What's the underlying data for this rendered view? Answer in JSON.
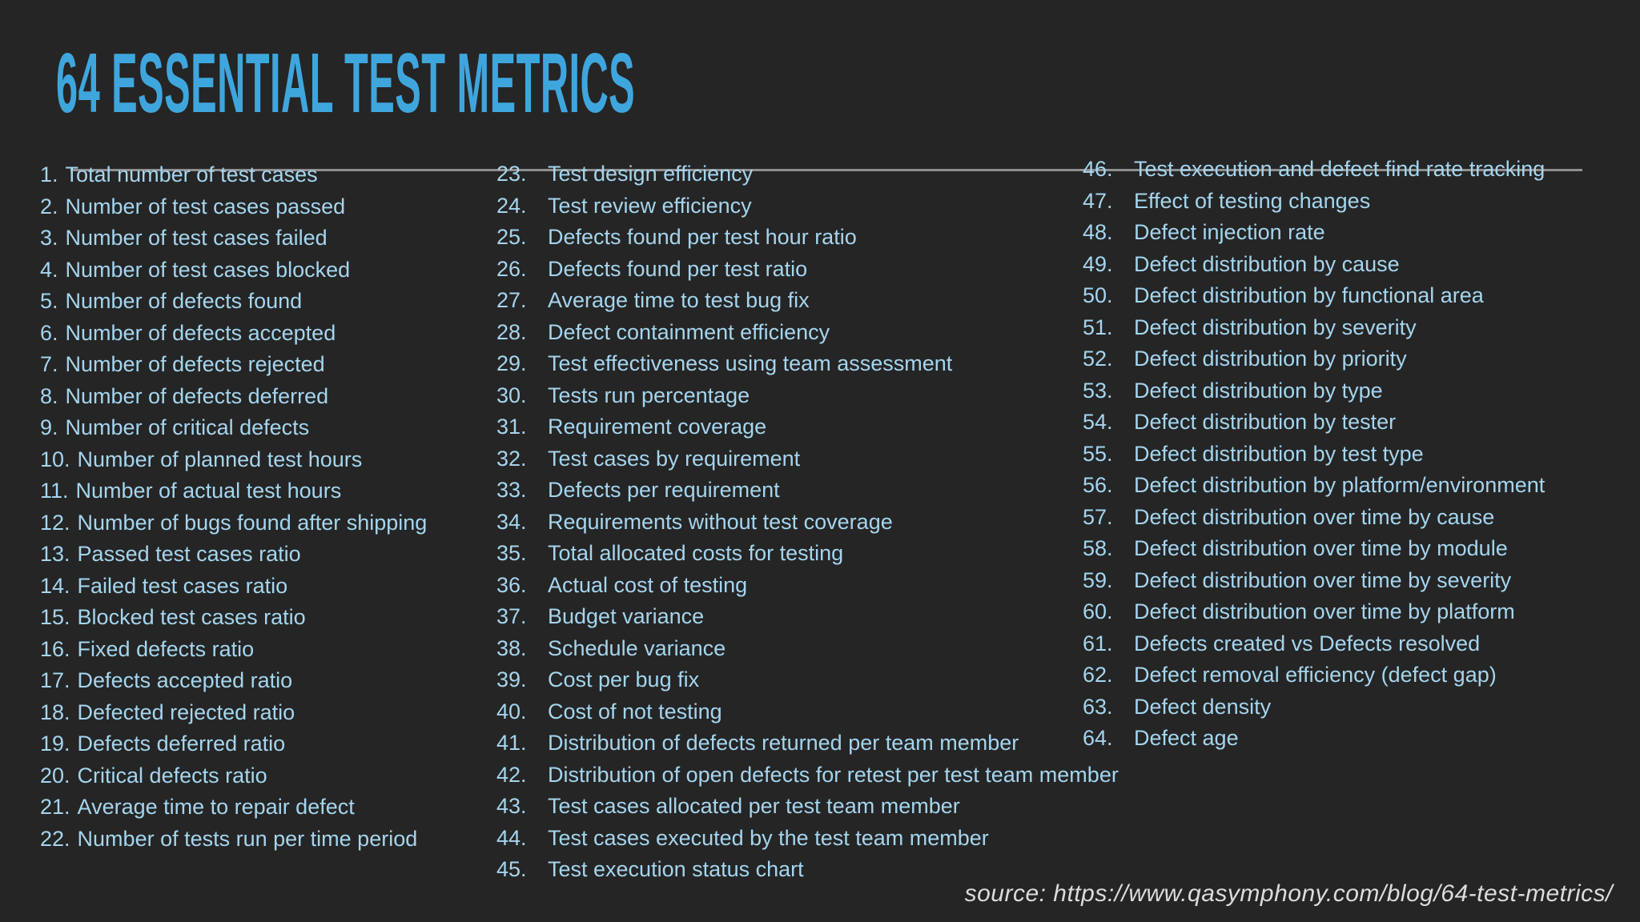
{
  "title": "64 ESSENTIAL TEST METRICS",
  "source_credit": "source: https://www.qasymphony.com/blog/64-test-metrics/",
  "colors": {
    "background": "#252525",
    "title": "#3fa6dd",
    "list_text": "#a5d5ee",
    "divider": "#8f8f8f",
    "source_text": "#dcdcdc"
  },
  "columns": {
    "col1": [
      {
        "n": "1.",
        "label": "Total number of test cases"
      },
      {
        "n": "2.",
        "label": "Number of test cases passed"
      },
      {
        "n": "3.",
        "label": "Number of test cases failed"
      },
      {
        "n": "4.",
        "label": "Number of test cases blocked"
      },
      {
        "n": "5.",
        "label": "Number of defects found"
      },
      {
        "n": "6.",
        "label": "Number of defects accepted"
      },
      {
        "n": "7.",
        "label": "Number of defects rejected"
      },
      {
        "n": "8.",
        "label": "Number of defects deferred"
      },
      {
        "n": "9.",
        "label": "Number of critical defects"
      },
      {
        "n": "10.",
        "label": "Number of planned test hours"
      },
      {
        "n": "11.",
        "label": "Number of actual test hours"
      },
      {
        "n": "12.",
        "label": "Number of bugs found after shipping"
      },
      {
        "n": "13.",
        "label": "Passed test cases ratio"
      },
      {
        "n": "14.",
        "label": "Failed test cases ratio"
      },
      {
        "n": "15.",
        "label": "Blocked test cases ratio"
      },
      {
        "n": "16.",
        "label": "Fixed defects ratio"
      },
      {
        "n": "17.",
        "label": "Defects accepted ratio"
      },
      {
        "n": "18.",
        "label": "Defected rejected ratio"
      },
      {
        "n": "19.",
        "label": "Defects deferred ratio"
      },
      {
        "n": "20.",
        "label": "Critical defects ratio"
      },
      {
        "n": "21.",
        "label": "Average time to repair defect"
      },
      {
        "n": "22.",
        "label": "Number of tests run per time period"
      }
    ],
    "col2": [
      {
        "n": "23.",
        "label": "Test design efficiency"
      },
      {
        "n": "24.",
        "label": "Test review efficiency"
      },
      {
        "n": "25.",
        "label": "Defects found per test hour ratio"
      },
      {
        "n": "26.",
        "label": "Defects found per test ratio"
      },
      {
        "n": "27.",
        "label": "Average time to test bug fix"
      },
      {
        "n": "28.",
        "label": "Defect containment efficiency"
      },
      {
        "n": "29.",
        "label": "Test effectiveness using team assessment"
      },
      {
        "n": "30.",
        "label": "Tests run percentage"
      },
      {
        "n": "31.",
        "label": "Requirement coverage"
      },
      {
        "n": "32.",
        "label": "Test cases by requirement"
      },
      {
        "n": "33.",
        "label": "Defects per requirement"
      },
      {
        "n": "34.",
        "label": "Requirements without test coverage"
      },
      {
        "n": "35.",
        "label": "Total allocated costs for testing"
      },
      {
        "n": "36.",
        "label": "Actual cost of testing"
      },
      {
        "n": "37.",
        "label": "Budget variance"
      },
      {
        "n": "38.",
        "label": "Schedule variance"
      },
      {
        "n": "39.",
        "label": "Cost per bug fix"
      },
      {
        "n": "40.",
        "label": "Cost of not testing"
      },
      {
        "n": "41.",
        "label": "Distribution of defects returned per team member"
      },
      {
        "n": "42.",
        "label": "Distribution of open defects for retest per test team member"
      },
      {
        "n": "43.",
        "label": "Test cases allocated per test team member"
      },
      {
        "n": "44.",
        "label": "Test cases executed by the test team member"
      },
      {
        "n": "45.",
        "label": "Test execution status chart"
      }
    ],
    "col3": [
      {
        "n": "46.",
        "label": "Test execution and defect find rate tracking"
      },
      {
        "n": "47.",
        "label": "Effect of testing changes"
      },
      {
        "n": "48.",
        "label": "Defect injection rate"
      },
      {
        "n": "49.",
        "label": "Defect distribution by cause"
      },
      {
        "n": "50.",
        "label": "Defect distribution by functional area"
      },
      {
        "n": "51.",
        "label": "Defect distribution by severity"
      },
      {
        "n": "52.",
        "label": "Defect distribution by priority"
      },
      {
        "n": "53.",
        "label": "Defect distribution by type"
      },
      {
        "n": "54.",
        "label": "Defect distribution by tester"
      },
      {
        "n": "55.",
        "label": "Defect distribution by test type"
      },
      {
        "n": "56.",
        "label": "Defect distribution by platform/environment"
      },
      {
        "n": "57.",
        "label": "Defect distribution over time by cause"
      },
      {
        "n": "58.",
        "label": "Defect distribution over time by module"
      },
      {
        "n": "59.",
        "label": "Defect distribution over time by severity"
      },
      {
        "n": "60.",
        "label": "Defect distribution over time by platform"
      },
      {
        "n": "61.",
        "label": "Defects created vs Defects resolved"
      },
      {
        "n": "62.",
        "label": "Defect removal efficiency (defect gap)"
      },
      {
        "n": "63.",
        "label": "Defect density"
      },
      {
        "n": "64.",
        "label": "Defect age"
      }
    ]
  }
}
